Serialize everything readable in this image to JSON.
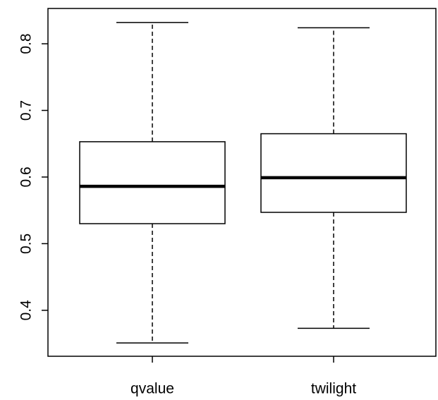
{
  "chart_data": {
    "type": "box",
    "categories": [
      "qvalue",
      "twilight"
    ],
    "boxes": [
      {
        "min": 0.351,
        "q1": 0.53,
        "median": 0.586,
        "q3": 0.653,
        "max": 0.832
      },
      {
        "min": 0.373,
        "q1": 0.547,
        "median": 0.599,
        "q3": 0.665,
        "max": 0.824
      }
    ],
    "color": "#000000",
    "ylim": [
      0.331,
      0.853
    ],
    "yticks": [
      0.4,
      0.5,
      0.6,
      0.7,
      0.8
    ]
  }
}
